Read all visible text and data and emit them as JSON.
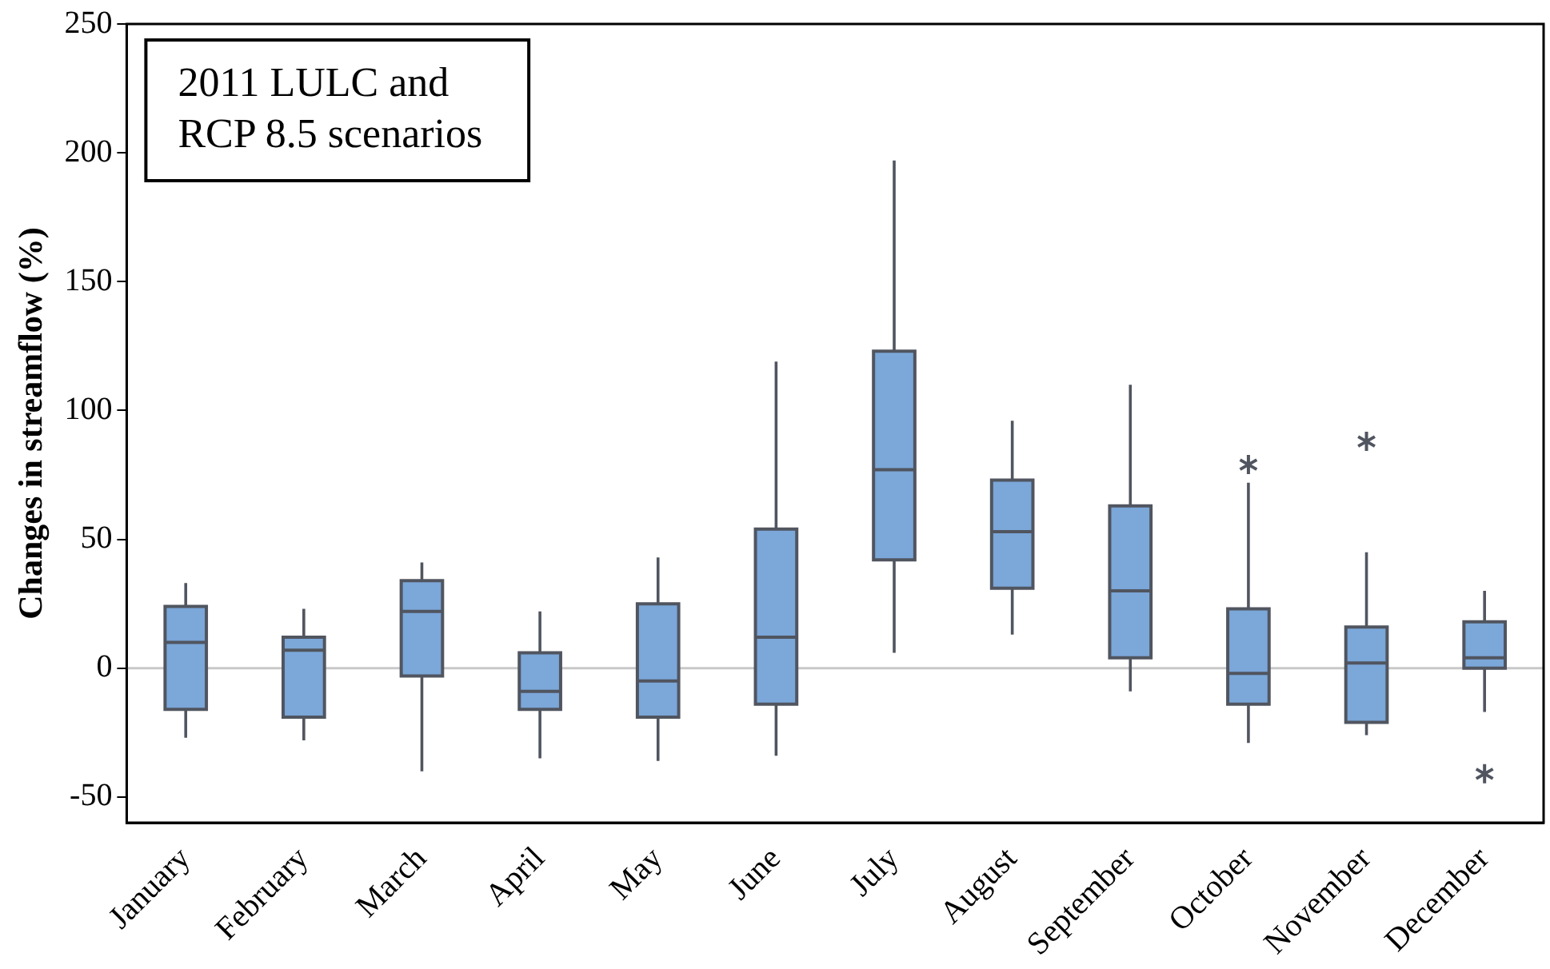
{
  "chart_data": {
    "type": "box",
    "ylabel": "Changes in streamflow (%)",
    "annotations": [
      "2011 LULC and\nRCP 8.5 scenarios"
    ],
    "categories": [
      "January",
      "February",
      "March",
      "April",
      "May",
      "June",
      "July",
      "August",
      "September",
      "October",
      "November",
      "December"
    ],
    "color": "#7ba7d9",
    "boxes": [
      {
        "low": -27,
        "q1": -16,
        "median": 10,
        "q3": 24,
        "high": 33
      },
      {
        "low": -28,
        "q1": -19,
        "median": 7,
        "q3": 12,
        "high": 23
      },
      {
        "low": -40,
        "q1": -3,
        "median": 22,
        "q3": 34,
        "high": 41
      },
      {
        "low": -35,
        "q1": -16,
        "median": -9,
        "q3": 6,
        "high": 22
      },
      {
        "low": -36,
        "q1": -19,
        "median": -5,
        "q3": 25,
        "high": 43
      },
      {
        "low": -34,
        "q1": -14,
        "median": 12,
        "q3": 54,
        "high": 119
      },
      {
        "low": 6,
        "q1": 42,
        "median": 77,
        "q3": 123,
        "high": 197
      },
      {
        "low": 13,
        "q1": 31,
        "median": 53,
        "q3": 73,
        "high": 96
      },
      {
        "low": -9,
        "q1": 4,
        "median": 30,
        "q3": 63,
        "high": 110
      },
      {
        "low": -29,
        "q1": -14,
        "median": -2,
        "q3": 23,
        "high": 72,
        "outliers": [
          79
        ]
      },
      {
        "low": -26,
        "q1": -21,
        "median": 2,
        "q3": 16,
        "high": 45,
        "outliers": [
          88
        ]
      },
      {
        "low": -17,
        "q1": 0,
        "median": 4,
        "q3": 18,
        "high": 30,
        "outliers": [
          -41
        ]
      }
    ],
    "ylim": [
      -60,
      250
    ],
    "yticks": [
      -50,
      0,
      50,
      100,
      150,
      200,
      250
    ],
    "ref_lines": [
      {
        "axis": "y",
        "value": 0,
        "color": "#c8c8c8"
      }
    ],
    "grid": false,
    "legend": false
  }
}
